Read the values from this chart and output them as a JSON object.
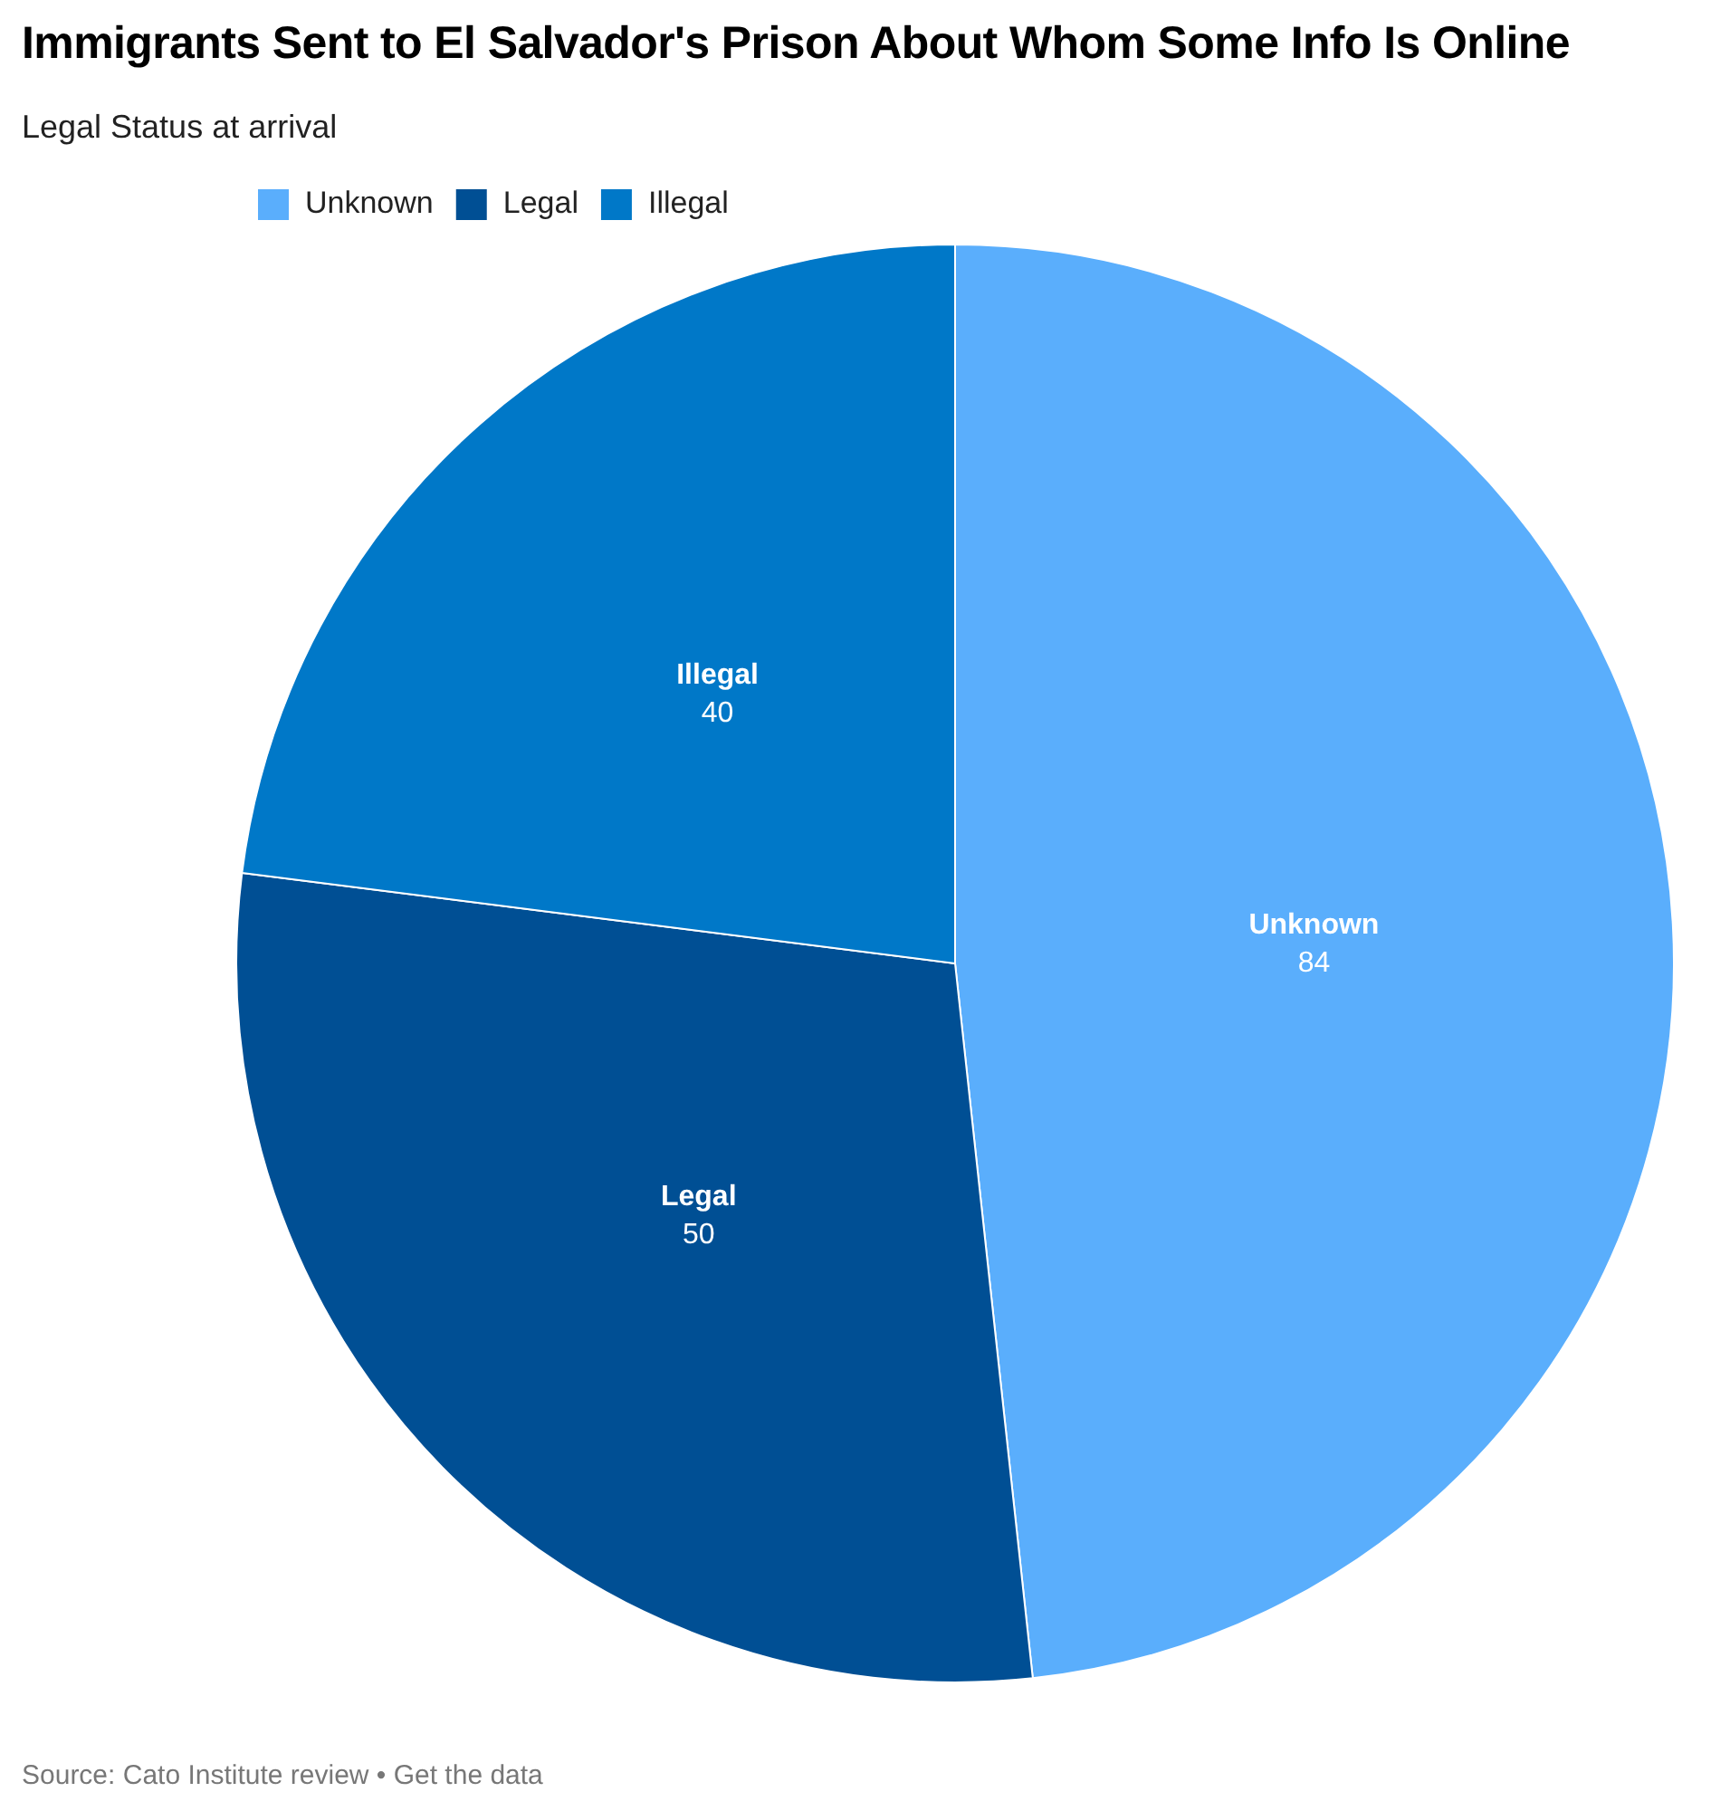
{
  "chart_data": {
    "type": "pie",
    "title": "Immigrants Sent to El Salvador's Prison About Whom Some Info Is Online",
    "subtitle": "Legal Status at arrival",
    "categories": [
      "Unknown",
      "Legal",
      "Illegal"
    ],
    "values": [
      84,
      50,
      40
    ],
    "colors": [
      "#5aaefc",
      "#004f94",
      "#0078c8"
    ],
    "legend": "top left",
    "data_labels": true,
    "annotations": [
      "Source: Cato Institute review • Get the data"
    ]
  }
}
